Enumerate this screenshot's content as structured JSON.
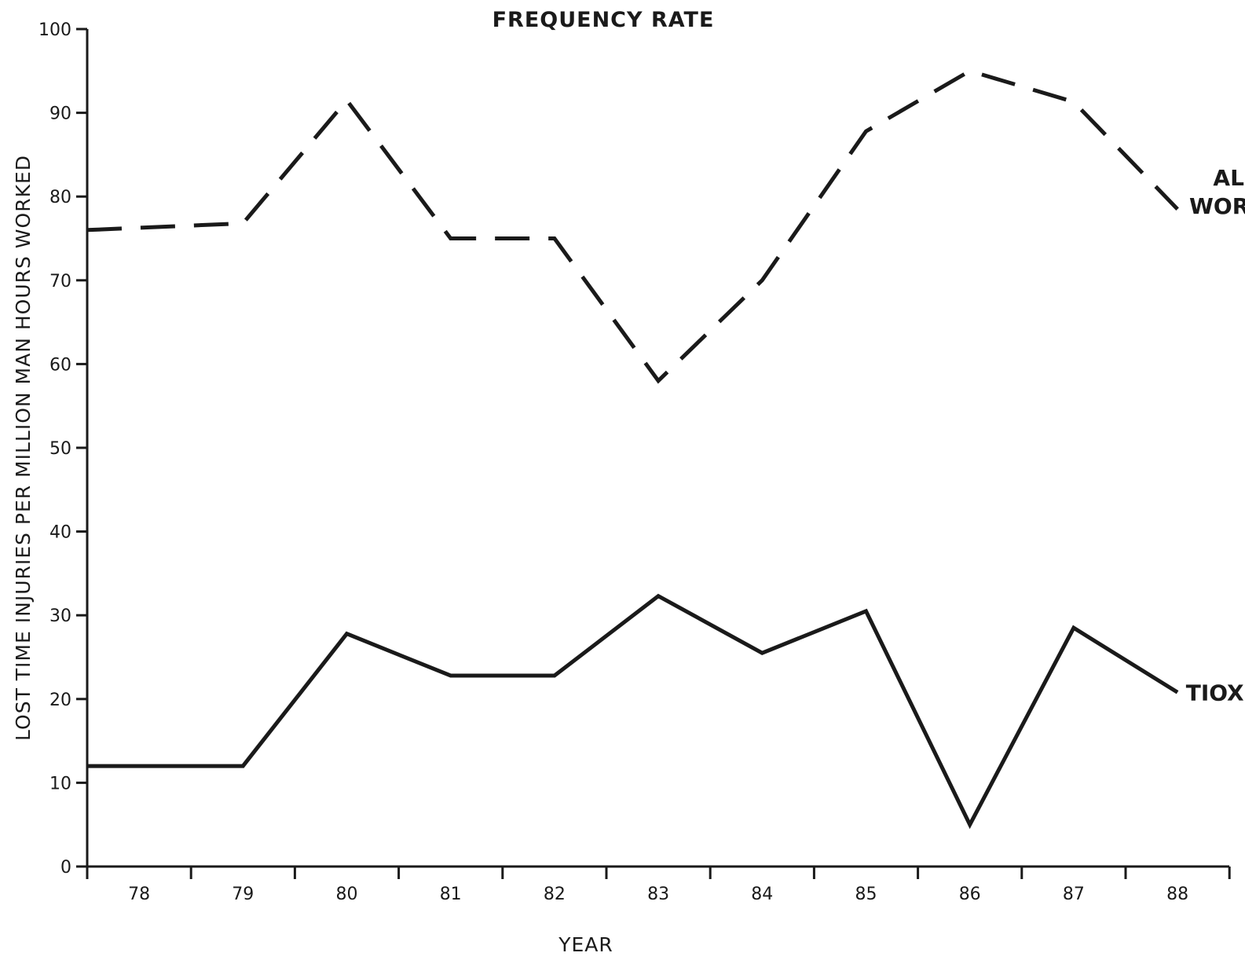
{
  "chart_data": {
    "type": "line",
    "title": "FREQUENCY RATE",
    "xlabel": "YEAR",
    "ylabel": "LOST TIME INJURIES PER MILLION MAN HOURS WORKED",
    "categories": [
      "78",
      "79",
      "80",
      "81",
      "82",
      "83",
      "84",
      "85",
      "86",
      "87",
      "88"
    ],
    "x_ticks_at_boundaries": true,
    "y_ticks": [
      "0",
      "10",
      "20",
      "30",
      "40",
      "50",
      "60",
      "70",
      "80",
      "90",
      "100"
    ],
    "ylim": [
      0,
      100
    ],
    "grid": false,
    "legend": "inline-right",
    "series": [
      {
        "name_lines": [
          "ALL",
          "WORKS"
        ],
        "style": "dashed",
        "color": "#1a1a1a",
        "x": [
          0,
          1,
          2,
          3,
          4,
          5,
          6,
          7,
          8,
          9,
          10
        ],
        "values": [
          76,
          76.8,
          91.5,
          75,
          75,
          58,
          70,
          87.8,
          95,
          91.3,
          78.5
        ]
      },
      {
        "name_lines": [
          "TIOXIDE"
        ],
        "style": "solid",
        "color": "#1a1a1a",
        "x": [
          0,
          1,
          2,
          3,
          4,
          5,
          6,
          7,
          8,
          9,
          10
        ],
        "values": [
          12,
          12,
          27.8,
          22.8,
          22.8,
          32.3,
          25.5,
          30.5,
          5,
          28.5,
          20.8
        ]
      }
    ]
  }
}
